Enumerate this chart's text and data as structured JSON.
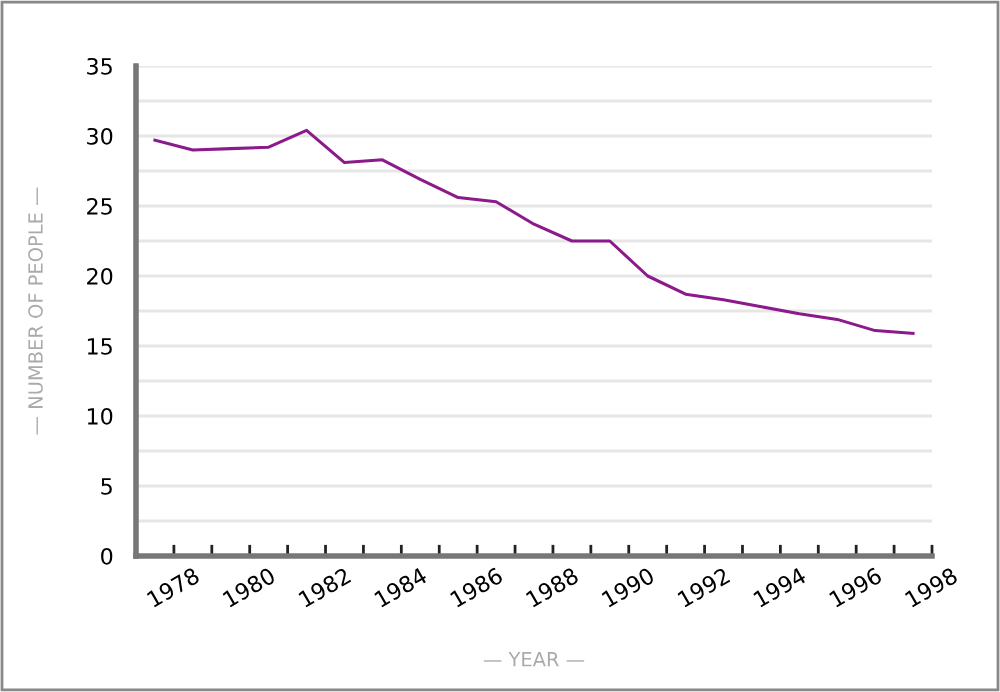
{
  "chart_data": {
    "type": "line",
    "xlabel": "— YEAR —",
    "ylabel": "— NUMBER OF PEOPLE —",
    "x": [
      1977.5,
      1978.5,
      1979.5,
      1980.5,
      1981.5,
      1982.5,
      1983.5,
      1984.5,
      1985.5,
      1986.5,
      1987.5,
      1988.5,
      1989.5,
      1990.5,
      1991.5,
      1992.5,
      1993.5,
      1994.5,
      1995.5,
      1996.5,
      1997.5
    ],
    "series": [
      {
        "color": "#8b1a8b",
        "values": [
          29.7,
          29.0,
          29.1,
          29.2,
          30.4,
          28.1,
          28.3,
          26.9,
          25.6,
          25.3,
          23.7,
          22.5,
          22.5,
          20.0,
          18.7,
          18.3,
          17.8,
          17.3,
          16.9,
          16.1,
          15.9
        ]
      }
    ],
    "xlim": [
      1977,
      1998
    ],
    "xticks": [
      {
        "value": 1977,
        "label": null
      },
      1978,
      {
        "value": 1979,
        "label": null
      },
      1980,
      {
        "value": 1981,
        "label": null
      },
      1982,
      {
        "value": 1983,
        "label": null
      },
      1984,
      {
        "value": 1985,
        "label": null
      },
      1986,
      {
        "value": 1987,
        "label": null
      },
      1988,
      {
        "value": 1989,
        "label": null
      },
      1990,
      {
        "value": 1991,
        "label": null
      },
      1992,
      {
        "value": 1993,
        "label": null
      },
      1994,
      {
        "value": 1995,
        "label": null
      },
      1996,
      {
        "value": 1997,
        "label": null
      },
      1998
    ],
    "ylim": [
      0,
      35
    ],
    "yticks": [
      0,
      {
        "value": 2.5,
        "label": null
      },
      5,
      {
        "value": 7.5,
        "label": null
      },
      10,
      {
        "value": 12.5,
        "label": null
      },
      15,
      {
        "value": 17.5,
        "label": null
      },
      20,
      {
        "value": 22.5,
        "label": null
      },
      25,
      {
        "value": 27.5,
        "label": null
      },
      30,
      {
        "value": 32.5,
        "label": null
      },
      35
    ],
    "grid": "y",
    "legend": false,
    "marker": "none",
    "line_style": "solid"
  }
}
